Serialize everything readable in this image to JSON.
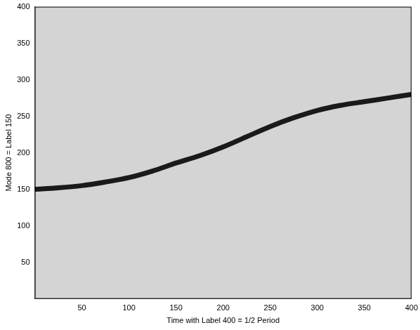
{
  "chart_data": {
    "type": "line",
    "x_label": "Time with Label 400 = 1/2 Period",
    "y_label": "Mode 800 = Label 150",
    "x": [
      0,
      25,
      50,
      75,
      100,
      125,
      150,
      175,
      200,
      225,
      250,
      275,
      300,
      325,
      350,
      375,
      400
    ],
    "values": [
      150,
      152,
      155,
      160,
      166,
      175,
      186,
      196,
      208,
      222,
      236,
      248,
      258,
      265,
      270,
      275,
      280
    ],
    "color": "#1a1a1a",
    "xlim": [
      0,
      400
    ],
    "xticks": [
      50,
      100,
      150,
      200,
      250,
      300,
      350,
      400
    ],
    "ylim": [
      0,
      400
    ],
    "yticks": [
      50,
      100,
      150,
      200,
      250,
      300,
      350,
      400
    ],
    "grid": false
  }
}
